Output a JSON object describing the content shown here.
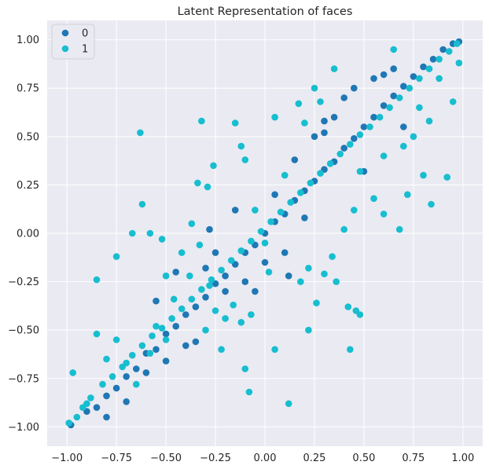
{
  "chart_data": {
    "type": "scatter",
    "title": "Latent Representation of faces",
    "xlabel": "",
    "ylabel": "",
    "xlim": [
      -1.1,
      1.1
    ],
    "ylim": [
      -1.1,
      1.1
    ],
    "xticks": [
      -1.0,
      -0.75,
      -0.5,
      -0.25,
      0.0,
      0.25,
      0.5,
      0.75,
      1.0
    ],
    "xtick_labels": [
      "−1.00",
      "−0.75",
      "−0.50",
      "−0.25",
      "0.00",
      "0.25",
      "0.50",
      "0.75",
      "1.00"
    ],
    "yticks": [
      1.0,
      0.75,
      0.5,
      0.25,
      0.0,
      -0.25,
      -0.5,
      -0.75,
      -1.0
    ],
    "ytick_labels": [
      "1.00",
      "0.75",
      "0.50",
      "0.25",
      "0.00",
      "−0.25",
      "−0.50",
      "−0.75",
      "−1.00"
    ],
    "grid": true,
    "legend_position": "top-left",
    "background_color": "#eaeaf2",
    "series": [
      {
        "name": "0",
        "color": "#1f77b4",
        "points": [
          [
            -0.98,
            -0.99
          ],
          [
            -0.9,
            -0.92
          ],
          [
            -0.85,
            -0.9
          ],
          [
            -0.8,
            -0.84
          ],
          [
            -0.75,
            -0.8
          ],
          [
            -0.7,
            -0.74
          ],
          [
            -0.65,
            -0.7
          ],
          [
            -0.6,
            -0.62
          ],
          [
            -0.55,
            -0.6
          ],
          [
            -0.5,
            -0.52
          ],
          [
            -0.45,
            -0.48
          ],
          [
            -0.4,
            -0.42
          ],
          [
            -0.35,
            -0.38
          ],
          [
            -0.3,
            -0.33
          ],
          [
            -0.25,
            -0.26
          ],
          [
            -0.2,
            -0.22
          ],
          [
            -0.15,
            -0.16
          ],
          [
            -0.1,
            -0.1
          ],
          [
            -0.05,
            -0.06
          ],
          [
            0.0,
            0.0
          ],
          [
            0.05,
            0.06
          ],
          [
            0.1,
            0.1
          ],
          [
            0.15,
            0.17
          ],
          [
            0.2,
            0.22
          ],
          [
            0.25,
            0.27
          ],
          [
            0.3,
            0.33
          ],
          [
            0.35,
            0.37
          ],
          [
            0.4,
            0.44
          ],
          [
            0.45,
            0.49
          ],
          [
            0.5,
            0.55
          ],
          [
            0.55,
            0.6
          ],
          [
            0.6,
            0.66
          ],
          [
            0.65,
            0.71
          ],
          [
            0.7,
            0.76
          ],
          [
            0.75,
            0.81
          ],
          [
            0.8,
            0.86
          ],
          [
            0.85,
            0.9
          ],
          [
            0.9,
            0.95
          ],
          [
            0.95,
            0.98
          ],
          [
            0.98,
            0.99
          ],
          [
            -0.3,
            -0.18
          ],
          [
            -0.25,
            -0.1
          ],
          [
            -0.2,
            -0.3
          ],
          [
            -0.15,
            0.12
          ],
          [
            -0.1,
            -0.25
          ],
          [
            0.05,
            0.2
          ],
          [
            0.1,
            -0.1
          ],
          [
            0.15,
            0.38
          ],
          [
            0.2,
            0.08
          ],
          [
            0.3,
            0.52
          ],
          [
            0.35,
            0.6
          ],
          [
            0.4,
            0.7
          ],
          [
            0.45,
            0.75
          ],
          [
            0.55,
            0.8
          ],
          [
            0.6,
            0.82
          ],
          [
            0.65,
            0.85
          ],
          [
            -0.6,
            -0.72
          ],
          [
            -0.5,
            -0.66
          ],
          [
            -0.4,
            -0.58
          ],
          [
            -0.35,
            -0.56
          ],
          [
            -0.7,
            -0.87
          ],
          [
            -0.8,
            -0.95
          ],
          [
            0.25,
            0.5
          ],
          [
            0.3,
            0.58
          ],
          [
            -0.05,
            -0.3
          ],
          [
            0.0,
            -0.15
          ],
          [
            -0.28,
            0.02
          ],
          [
            0.12,
            -0.22
          ],
          [
            0.5,
            0.32
          ],
          [
            0.7,
            0.55
          ],
          [
            -0.45,
            -0.2
          ],
          [
            -0.55,
            -0.35
          ]
        ]
      },
      {
        "name": "1",
        "color": "#17becf",
        "points": [
          [
            -0.99,
            -0.98
          ],
          [
            -0.92,
            -0.9
          ],
          [
            -0.88,
            -0.85
          ],
          [
            -0.82,
            -0.78
          ],
          [
            -0.77,
            -0.74
          ],
          [
            -0.72,
            -0.69
          ],
          [
            -0.67,
            -0.63
          ],
          [
            -0.62,
            -0.58
          ],
          [
            -0.57,
            -0.53
          ],
          [
            -0.52,
            -0.49
          ],
          [
            -0.47,
            -0.44
          ],
          [
            -0.42,
            -0.39
          ],
          [
            -0.37,
            -0.34
          ],
          [
            -0.32,
            -0.29
          ],
          [
            -0.27,
            -0.24
          ],
          [
            -0.22,
            -0.19
          ],
          [
            -0.17,
            -0.14
          ],
          [
            -0.12,
            -0.09
          ],
          [
            -0.07,
            -0.04
          ],
          [
            -0.02,
            0.01
          ],
          [
            0.03,
            0.06
          ],
          [
            0.08,
            0.11
          ],
          [
            0.13,
            0.16
          ],
          [
            0.18,
            0.21
          ],
          [
            0.23,
            0.26
          ],
          [
            0.28,
            0.31
          ],
          [
            0.33,
            0.36
          ],
          [
            0.38,
            0.41
          ],
          [
            0.43,
            0.46
          ],
          [
            0.48,
            0.51
          ],
          [
            0.53,
            0.55
          ],
          [
            0.58,
            0.6
          ],
          [
            0.63,
            0.65
          ],
          [
            0.68,
            0.7
          ],
          [
            0.73,
            0.75
          ],
          [
            0.78,
            0.8
          ],
          [
            0.83,
            0.85
          ],
          [
            0.88,
            0.9
          ],
          [
            0.93,
            0.94
          ],
          [
            0.97,
            0.98
          ],
          [
            -0.63,
            0.52
          ],
          [
            -0.32,
            0.58
          ],
          [
            -0.15,
            0.57
          ],
          [
            -0.62,
            0.15
          ],
          [
            -0.67,
            0.0
          ],
          [
            -0.75,
            -0.12
          ],
          [
            -0.85,
            -0.24
          ],
          [
            -0.97,
            -0.72
          ],
          [
            -0.34,
            0.26
          ],
          [
            -0.29,
            0.24
          ],
          [
            -0.26,
            0.35
          ],
          [
            -0.12,
            0.45
          ],
          [
            -0.1,
            0.38
          ],
          [
            0.05,
            0.6
          ],
          [
            0.17,
            0.67
          ],
          [
            0.2,
            0.57
          ],
          [
            0.35,
            0.85
          ],
          [
            0.65,
            0.95
          ],
          [
            0.83,
            0.58
          ],
          [
            0.95,
            0.68
          ],
          [
            0.98,
            0.88
          ],
          [
            0.92,
            0.29
          ],
          [
            0.84,
            0.15
          ],
          [
            0.8,
            0.3
          ],
          [
            0.72,
            0.2
          ],
          [
            0.68,
            0.02
          ],
          [
            0.6,
            0.1
          ],
          [
            0.55,
            0.18
          ],
          [
            0.48,
            0.32
          ],
          [
            0.45,
            0.12
          ],
          [
            0.4,
            0.02
          ],
          [
            0.34,
            -0.12
          ],
          [
            0.3,
            -0.21
          ],
          [
            0.26,
            -0.36
          ],
          [
            0.22,
            -0.18
          ],
          [
            0.18,
            -0.25
          ],
          [
            0.12,
            -0.88
          ],
          [
            0.05,
            -0.6
          ],
          [
            0.02,
            -0.2
          ],
          [
            -0.07,
            -0.42
          ],
          [
            -0.12,
            -0.46
          ],
          [
            -0.08,
            -0.82
          ],
          [
            -0.16,
            -0.37
          ],
          [
            -0.2,
            -0.44
          ],
          [
            -0.25,
            -0.4
          ],
          [
            -0.28,
            -0.27
          ],
          [
            -0.33,
            -0.06
          ],
          [
            -0.37,
            0.05
          ],
          [
            -0.52,
            -0.03
          ],
          [
            -0.5,
            -0.22
          ],
          [
            -0.46,
            -0.34
          ],
          [
            -0.5,
            -0.55
          ],
          [
            -0.55,
            -0.48
          ],
          [
            -0.58,
            -0.62
          ],
          [
            -0.65,
            -0.78
          ],
          [
            -0.7,
            -0.67
          ],
          [
            -0.75,
            -0.55
          ],
          [
            -0.8,
            -0.65
          ],
          [
            -0.85,
            -0.52
          ],
          [
            -0.9,
            -0.88
          ],
          [
            -0.95,
            -0.95
          ],
          [
            0.25,
            0.75
          ],
          [
            0.28,
            0.68
          ],
          [
            0.42,
            -0.38
          ],
          [
            0.48,
            -0.42
          ],
          [
            0.43,
            -0.6
          ],
          [
            0.46,
            -0.4
          ],
          [
            0.36,
            -0.25
          ],
          [
            0.22,
            -0.5
          ],
          [
            0.1,
            0.3
          ],
          [
            -0.05,
            0.12
          ],
          [
            0.0,
            -0.05
          ],
          [
            0.6,
            0.4
          ],
          [
            0.7,
            0.45
          ],
          [
            0.75,
            0.5
          ],
          [
            0.88,
            0.8
          ],
          [
            0.78,
            0.65
          ],
          [
            -0.58,
            0.0
          ],
          [
            -0.42,
            -0.1
          ],
          [
            -0.38,
            -0.22
          ],
          [
            -0.3,
            -0.5
          ],
          [
            -0.22,
            -0.6
          ],
          [
            -0.1,
            -0.7
          ]
        ]
      }
    ]
  }
}
